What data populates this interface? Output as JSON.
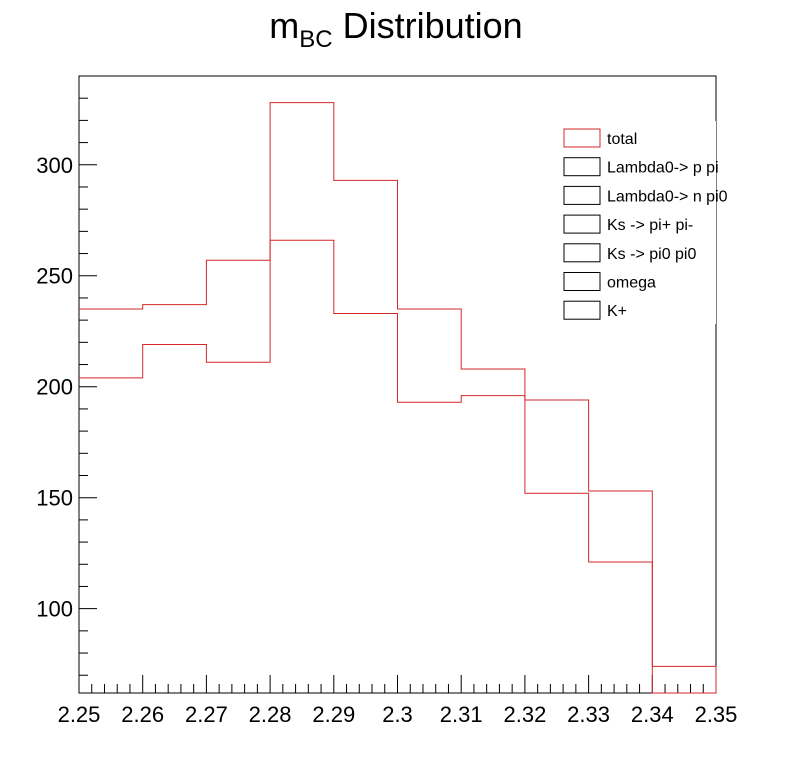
{
  "chart_data": {
    "type": "histogram",
    "title": {
      "main": "m",
      "subscript": "BC",
      "suffix": " Distribution"
    },
    "xlabel": "",
    "ylabel": "",
    "xlim": [
      2.25,
      2.35
    ],
    "ylim": [
      62,
      340
    ],
    "x_ticks": [
      "2.25",
      "2.26",
      "2.27",
      "2.28",
      "2.29",
      "2.3",
      "2.31",
      "2.32",
      "2.33",
      "2.34",
      "2.35"
    ],
    "y_ticks": [
      "100",
      "150",
      "200",
      "250",
      "300"
    ],
    "bin_edges": [
      2.25,
      2.26,
      2.27,
      2.28,
      2.29,
      2.3,
      2.31,
      2.32,
      2.33,
      2.34,
      2.35
    ],
    "series": [
      {
        "name": "total",
        "color": "#d62728",
        "values": [
          235,
          237,
          257,
          328,
          293,
          235,
          208,
          194,
          153,
          74
        ]
      },
      {
        "name": "",
        "color": "#d62728",
        "values": [
          204,
          219,
          211,
          266,
          233,
          193,
          196,
          152,
          121,
          62
        ]
      }
    ],
    "legend": {
      "position": "top-right",
      "entries": [
        {
          "label": "total",
          "color": "#d62728"
        },
        {
          "label": "Lambda0-> p pi",
          "color": "#000000"
        },
        {
          "label": "Lambda0-> n pi0",
          "color": "#000000"
        },
        {
          "label": "Ks -> pi+ pi-",
          "color": "#000000"
        },
        {
          "label": "Ks -> pi0 pi0",
          "color": "#000000"
        },
        {
          "label": "omega",
          "color": "#000000"
        },
        {
          "label": "K+",
          "color": "#000000"
        }
      ]
    }
  }
}
